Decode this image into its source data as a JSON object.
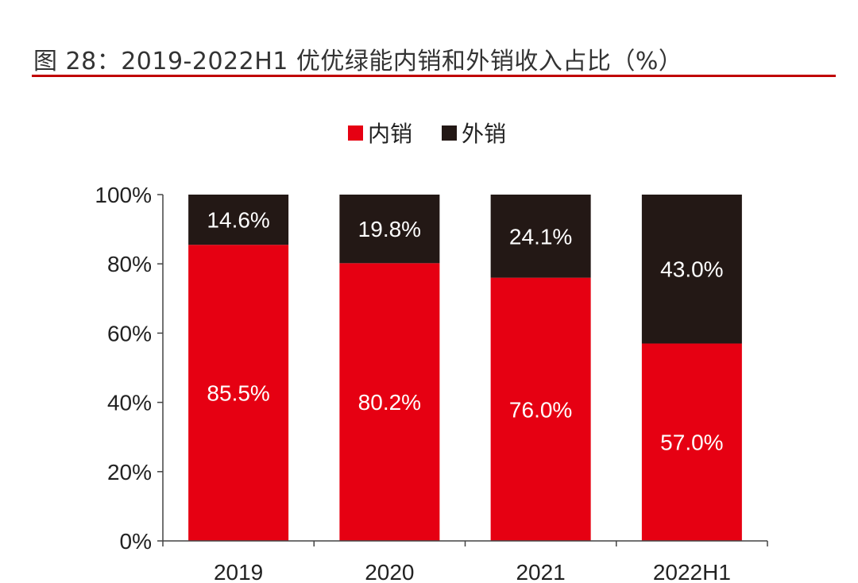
{
  "figure_title": "图 28：2019-2022H1 优优绿能内销和外销收入占比（%）",
  "chart_data": {
    "type": "bar",
    "stacked": true,
    "title": "",
    "xlabel": "",
    "ylabel": "",
    "categories": [
      "2019",
      "2020",
      "2021",
      "2022H1"
    ],
    "series": [
      {
        "name": "内销",
        "color": "#e60012",
        "values": [
          85.5,
          80.2,
          76.0,
          57.0
        ],
        "labels": [
          "85.5%",
          "80.2%",
          "76.0%",
          "57.0%"
        ]
      },
      {
        "name": "外销",
        "color": "#231815",
        "values": [
          14.6,
          19.8,
          24.1,
          43.0
        ],
        "labels": [
          "14.6%",
          "19.8%",
          "24.1%",
          "43.0%"
        ]
      }
    ],
    "ylim": [
      0,
      100
    ],
    "yticks": [
      "0%",
      "20%",
      "40%",
      "60%",
      "80%",
      "100%"
    ],
    "grid": false,
    "legend_position": "top-center"
  }
}
